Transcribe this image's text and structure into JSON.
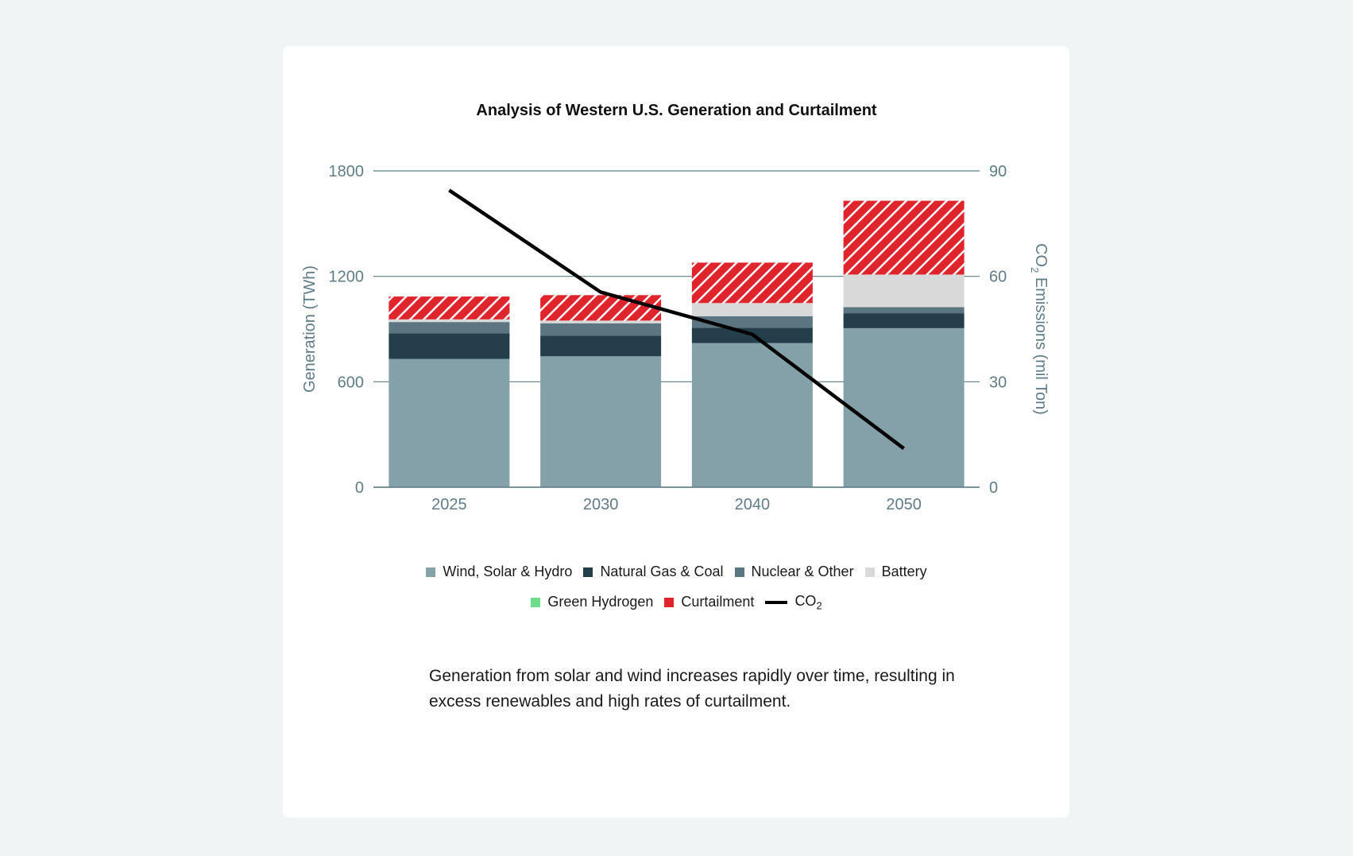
{
  "chart_data": {
    "type": "bar",
    "stacked": true,
    "title": "Analysis of Western U.S. Generation and Curtailment",
    "categories": [
      "2025",
      "2030",
      "2040",
      "2050"
    ],
    "ylabel": "Generation (TWh)",
    "ylim": [
      0,
      1800
    ],
    "yticks": [
      0,
      600,
      1200,
      1800
    ],
    "y2label_prefix": "CO",
    "y2label_sub": "2",
    "y2label_suffix": " Emissions (mil Ton)",
    "y2lim": [
      0,
      90
    ],
    "y2ticks": [
      0,
      30,
      60,
      90
    ],
    "grid": true,
    "legend_position": "bottom",
    "series": [
      {
        "name": "Wind, Solar & Hydro",
        "color": "#84a1aa",
        "values": [
          730,
          745,
          820,
          905
        ]
      },
      {
        "name": "Natural Gas & Coal",
        "color": "#243f4b",
        "values": [
          145,
          118,
          88,
          85
        ]
      },
      {
        "name": "Nuclear & Other",
        "color": "#5b7581",
        "values": [
          65,
          70,
          65,
          35
        ]
      },
      {
        "name": "Battery",
        "color": "#d9d9d9",
        "values": [
          15,
          15,
          75,
          185
        ]
      },
      {
        "name": "Green Hydrogen",
        "color": "#6fdc8c",
        "values": [
          0,
          0,
          0,
          0
        ]
      },
      {
        "name": "Curtailment",
        "color": "#e0242c",
        "pattern": "hatched",
        "values": [
          130,
          145,
          230,
          420
        ]
      }
    ],
    "line_series": {
      "name_prefix": "CO",
      "name_sub": "2",
      "color": "#000000",
      "axis": "right",
      "values": [
        84.5,
        55.5,
        43.5,
        11
      ]
    }
  },
  "caption": "Generation from solar and wind increases rapidly over time, resulting in excess renewables and high rates of curtailment."
}
